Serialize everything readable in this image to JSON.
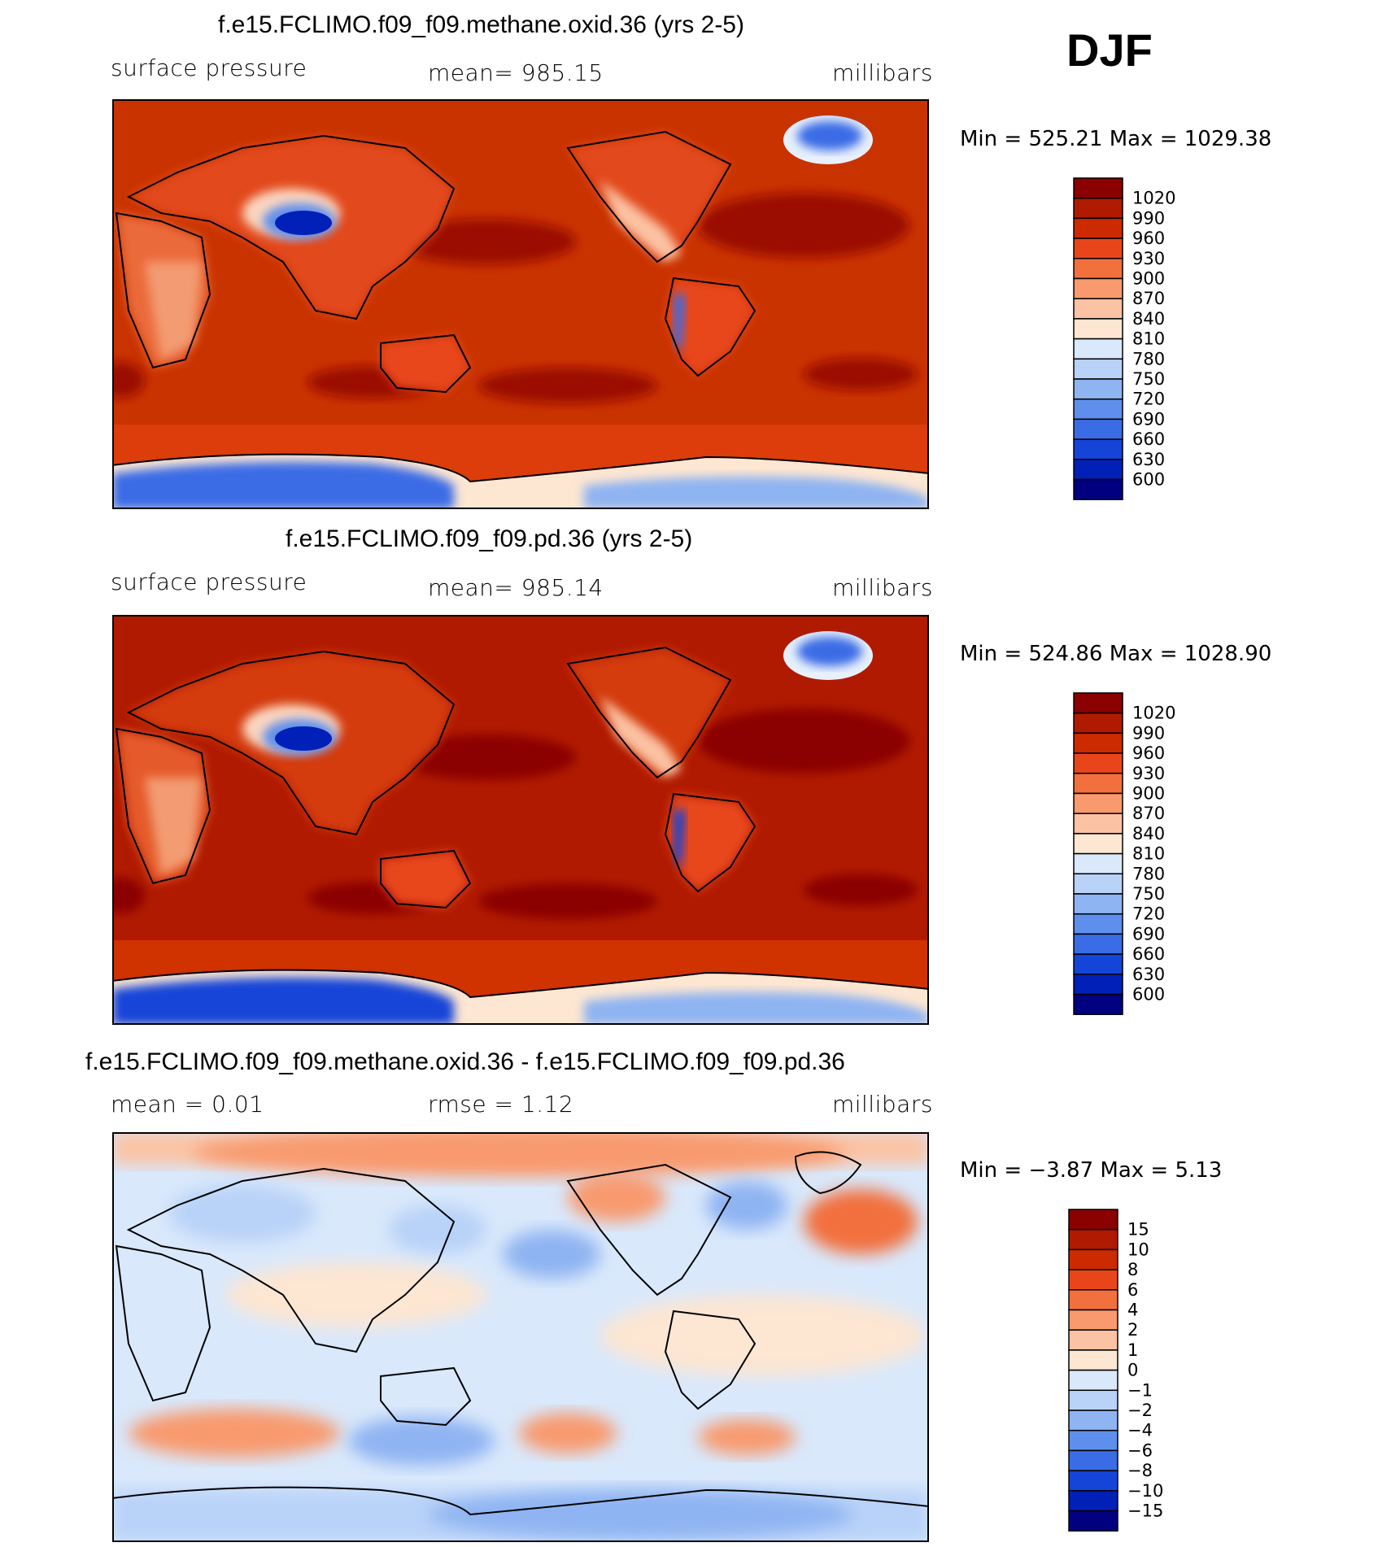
{
  "season": "DJF",
  "panels": [
    {
      "id": "methane",
      "title": "f.e15.FCLIMO.f09_f09.methane.oxid.36 (yrs 2-5)",
      "left_label": "surface pressure",
      "center_label": "mean= 985.15",
      "right_label": "millibars",
      "min_max": "Min = 525.21 Max = 1029.38",
      "colorbar": {
        "labels": [
          "1020",
          "990",
          "960",
          "930",
          "900",
          "870",
          "840",
          "810",
          "780",
          "750",
          "720",
          "690",
          "660",
          "630",
          "600"
        ],
        "colors": [
          "#8b0000",
          "#b01a00",
          "#cc2a00",
          "#e8461a",
          "#f2703d",
          "#f89a6e",
          "#fbc2a3",
          "#fde6d2",
          "#d9e8fb",
          "#b8d2f8",
          "#8fb4f2",
          "#5f8fec",
          "#3a6ce6",
          "#1544d8",
          "#0020b8",
          "#000080"
        ]
      }
    },
    {
      "id": "pd",
      "title": "f.e15.FCLIMO.f09_f09.pd.36 (yrs 2-5)",
      "left_label": "surface pressure",
      "center_label": "mean= 985.14",
      "right_label": "millibars",
      "min_max": "Min = 524.86 Max = 1028.90",
      "colorbar": {
        "labels": [
          "1020",
          "990",
          "960",
          "930",
          "900",
          "870",
          "840",
          "810",
          "780",
          "750",
          "720",
          "690",
          "660",
          "630",
          "600"
        ],
        "colors": [
          "#8b0000",
          "#b01a00",
          "#cc2a00",
          "#e8461a",
          "#f2703d",
          "#f89a6e",
          "#fbc2a3",
          "#fde6d2",
          "#d9e8fb",
          "#b8d2f8",
          "#8fb4f2",
          "#5f8fec",
          "#3a6ce6",
          "#1544d8",
          "#0020b8",
          "#000080"
        ]
      }
    },
    {
      "id": "diff",
      "title": "f.e15.FCLIMO.f09_f09.methane.oxid.36 - f.e15.FCLIMO.f09_f09.pd.36",
      "left_label": "mean =     0.01",
      "center_label": "rmse =     1.12",
      "right_label": "millibars",
      "min_max": "Min =   −3.87 Max =     5.13",
      "colorbar": {
        "labels": [
          "15",
          "10",
          "8",
          "6",
          "4",
          "2",
          "1",
          "0",
          "−1",
          "−2",
          "−4",
          "−6",
          "−8",
          "−10",
          "−15"
        ],
        "colors": [
          "#8b0000",
          "#b01a00",
          "#cc2a00",
          "#e8461a",
          "#f2703d",
          "#f89a6e",
          "#fbc2a3",
          "#fde6d2",
          "#d9e8fb",
          "#b8d2f8",
          "#8fb4f2",
          "#5f8fec",
          "#3a6ce6",
          "#1544d8",
          "#0020b8",
          "#000080"
        ]
      }
    }
  ]
}
